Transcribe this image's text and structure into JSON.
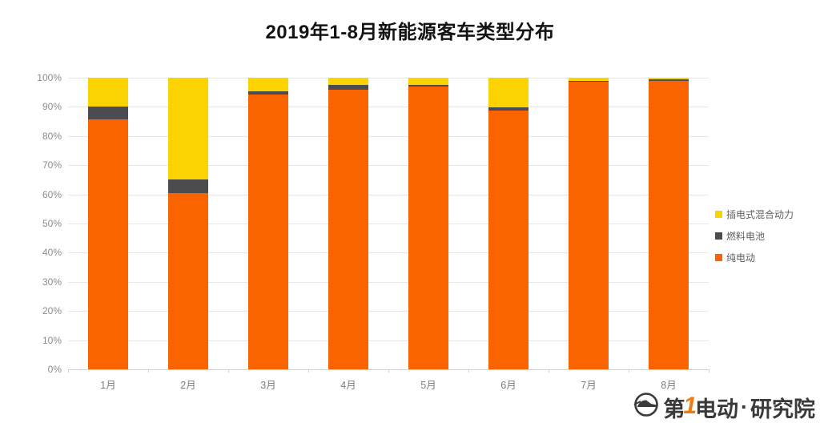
{
  "title": "2019年1-8月新能源客车类型分布",
  "watermark": {
    "prefix": "第",
    "one": "1",
    "mid": "电动",
    "dot": "·",
    "suffix": "研究院",
    "accent_color": "#f07c10"
  },
  "chart_data": {
    "type": "bar",
    "stacked": true,
    "title": "2019年1-8月新能源客车类型分布",
    "categories": [
      "1月",
      "2月",
      "3月",
      "4月",
      "5月",
      "6月",
      "7月",
      "8月"
    ],
    "series": [
      {
        "name": "纯电动",
        "color": "#fa6400",
        "values": [
          85.6,
          60.5,
          94.1,
          95.9,
          97.0,
          88.7,
          98.7,
          98.9
        ]
      },
      {
        "name": "燃料电池",
        "color": "#4b4b50",
        "values": [
          4.5,
          4.5,
          1.2,
          1.6,
          0.4,
          1.1,
          0.3,
          0.6
        ]
      },
      {
        "name": "插电式混合动力",
        "color": "#fbd300",
        "values": [
          9.9,
          35.0,
          4.7,
          2.5,
          2.6,
          10.2,
          1.0,
          0.5
        ]
      }
    ],
    "xlabel": "",
    "ylabel": "",
    "ylim": [
      0,
      100
    ],
    "ytick_step": 10,
    "yticks": [
      "0%",
      "10%",
      "20%",
      "30%",
      "40%",
      "50%",
      "60%",
      "70%",
      "80%",
      "90%",
      "100%"
    ],
    "grid": true,
    "legend_position": "right",
    "legend_order_top_to_bottom": [
      "插电式混合动力",
      "燃料电池",
      "纯电动"
    ],
    "gridline_color": "#e7e7e7",
    "axisline_color": "#d2d2d2"
  }
}
